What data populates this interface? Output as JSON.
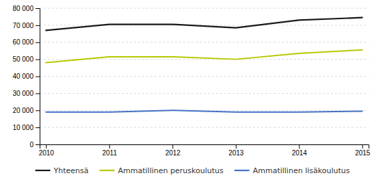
{
  "chart_data": {
    "type": "line",
    "categories": [
      "2010",
      "2011",
      "2012",
      "2013",
      "2014",
      "2015"
    ],
    "series": [
      {
        "name": "Yhteensä",
        "color": "#1a1a1a",
        "values": [
          67000,
          70500,
          70500,
          68500,
          73000,
          74500
        ]
      },
      {
        "name": "Ammatillinen peruskoulutus",
        "color": "#b5c900",
        "values": [
          48000,
          51500,
          51500,
          50000,
          53500,
          55500
        ]
      },
      {
        "name": "Ammatillinen lisäkoulutus",
        "color": "#4472c4",
        "values": [
          19000,
          19000,
          20000,
          19000,
          19000,
          19500
        ]
      }
    ],
    "ylim": [
      0,
      80000
    ],
    "yticks": [
      0,
      {
        "value": 10000,
        "label": "10 000"
      },
      {
        "value": 20000,
        "label": "20 000"
      },
      {
        "value": 30000,
        "label": "30 000"
      },
      {
        "value": 40000,
        "label": "40 000"
      },
      {
        "value": 50000,
        "label": "50 000"
      },
      {
        "value": 60000,
        "label": "60 000"
      },
      {
        "value": 70000,
        "label": "70 000"
      },
      {
        "value": 80000,
        "label": "80 000"
      }
    ],
    "grid": true,
    "legend": "bottom"
  }
}
